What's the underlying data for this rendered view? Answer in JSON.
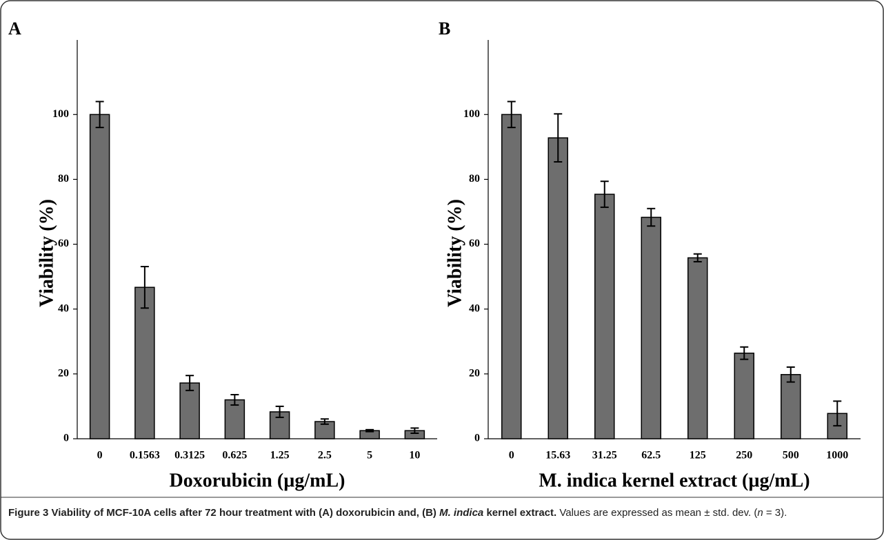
{
  "chart_data": [
    {
      "type": "bar",
      "panel": "A",
      "ylabel": "Viability (%)",
      "xlabel": "Doxorubicin (µg/mL)",
      "categories": [
        "0",
        "0.1563",
        "0.3125",
        "0.625",
        "1.25",
        "2.5",
        "5",
        "10"
      ],
      "values": [
        100,
        46.7,
        17.2,
        12,
        8.3,
        5.3,
        2.5,
        2.5
      ],
      "errors": [
        4,
        6.4,
        2.3,
        1.6,
        1.7,
        0.8,
        0.3,
        0.8
      ],
      "color": "#6e6e6e",
      "ylim": [
        0,
        123
      ],
      "yticks": [
        0,
        20,
        40,
        60,
        80,
        100
      ]
    },
    {
      "type": "bar",
      "panel": "B",
      "ylabel": "Viability (%)",
      "xlabel": "M. indica kernel extract (µg/mL)",
      "categories": [
        "0",
        "15.63",
        "31.25",
        "62.5",
        "125",
        "250",
        "500",
        "1000"
      ],
      "values": [
        100,
        92.8,
        75.4,
        68.3,
        55.8,
        26.4,
        19.8,
        7.8
      ],
      "errors": [
        4,
        7.4,
        4,
        2.7,
        1.2,
        1.9,
        2.3,
        3.8
      ],
      "color": "#6e6e6e",
      "ylim": [
        0,
        123
      ],
      "yticks": [
        0,
        20,
        40,
        60,
        80,
        100
      ]
    }
  ],
  "caption": [
    "Figure 3",
    " Viability of MCF-10A cells after 72 hour treatment with (A) doxorubicin and, (B) ",
    "M. indica",
    " kernel extract.",
    " Values are expressed as mean ± std. dev. (",
    "n",
    " = 3)."
  ]
}
